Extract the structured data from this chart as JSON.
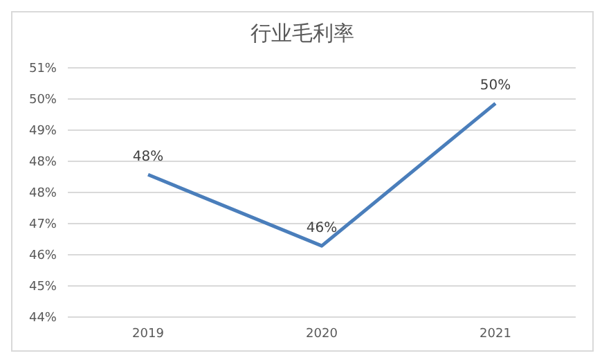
{
  "chart_data": {
    "type": "line",
    "title": "行业毛利率",
    "categories": [
      "2019",
      "2020",
      "2021"
    ],
    "series": [
      {
        "color": "#4a7ebb",
        "values": [
          48,
          46,
          50
        ],
        "value_labels": [
          "48%",
          "46%",
          "50%"
        ]
      }
    ],
    "ylim": [
      44,
      51
    ],
    "yticks": [
      {
        "value": 44,
        "label": "44%"
      },
      {
        "value": 44.875,
        "label": "45%"
      },
      {
        "value": 45.75,
        "label": "46%"
      },
      {
        "value": 46.625,
        "label": "47%"
      },
      {
        "value": 47.5,
        "label": "48%"
      },
      {
        "value": 48.375,
        "label": "48%"
      },
      {
        "value": 49.25,
        "label": "49%"
      },
      {
        "value": 50.125,
        "label": "50%"
      },
      {
        "value": 51,
        "label": "51%"
      }
    ],
    "grid": "y",
    "legend": false,
    "marker": "none",
    "line_style": "solid"
  }
}
